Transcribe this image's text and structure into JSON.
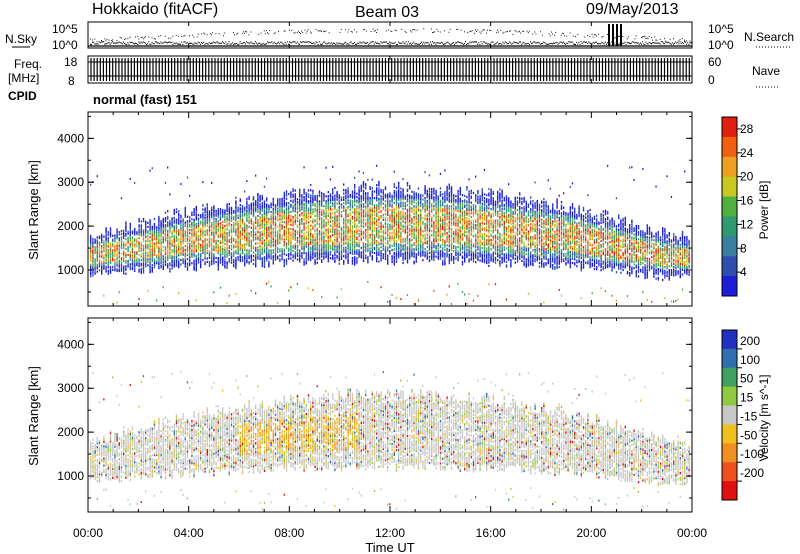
{
  "header": {
    "station": "Hokkaido (fitACF)",
    "beam": "Beam 03",
    "date": "09/May/2013"
  },
  "strips": {
    "nsky_label": "N.Sky",
    "nsearch_label": "N.Search",
    "freq_label_1": "Freq.",
    "freq_label_2": "[MHz]",
    "nave_label": "Nave",
    "cpid_label": "CPID",
    "cpid_value": "normal (fast) 151",
    "nsky_ticks": [
      "10^5",
      "10^0"
    ],
    "nsearch_ticks": [
      "10^5",
      "10^0"
    ],
    "freq_ticks": [
      "18",
      "8"
    ],
    "nave_ticks": [
      "60",
      "0"
    ]
  },
  "chart_data": [
    {
      "type": "heatmap",
      "name": "power",
      "ylabel": "Slant Range [km]",
      "xlabel": "",
      "ylim": [
        180,
        4600
      ],
      "yticks": [
        1000,
        2000,
        3000,
        4000
      ],
      "x_categories": [
        "00:00",
        "04:00",
        "08:00",
        "12:00",
        "16:00",
        "20:00",
        "00:00"
      ],
      "colorbar": {
        "label": "Power [dB]",
        "ticks": [
          4,
          8,
          12,
          16,
          20,
          24,
          28
        ],
        "range": [
          0,
          30
        ],
        "colors": [
          "#1d1dd8",
          "#2f4fb0",
          "#3b7fa0",
          "#2f9a70",
          "#4fb040",
          "#c8c820",
          "#f0a020",
          "#f06010",
          "#e02010"
        ]
      }
    },
    {
      "type": "heatmap",
      "name": "velocity",
      "ylabel": "Slant Range [km]",
      "xlabel": "Time UT",
      "ylim": [
        180,
        4600
      ],
      "yticks": [
        1000,
        2000,
        3000,
        4000
      ],
      "x_categories": [
        "00:00",
        "04:00",
        "08:00",
        "12:00",
        "16:00",
        "20:00",
        "00:00"
      ],
      "colorbar": {
        "label": "Velocity [m s^-1]",
        "ticks": [
          "200",
          "100",
          "50",
          "15",
          "-15",
          "-50",
          "-100",
          "-200"
        ],
        "colors": [
          "#2030c0",
          "#3070b0",
          "#40a060",
          "#90c840",
          "#c8c8c8",
          "#f0c020",
          "#f09020",
          "#f05020",
          "#e01010"
        ]
      }
    }
  ]
}
